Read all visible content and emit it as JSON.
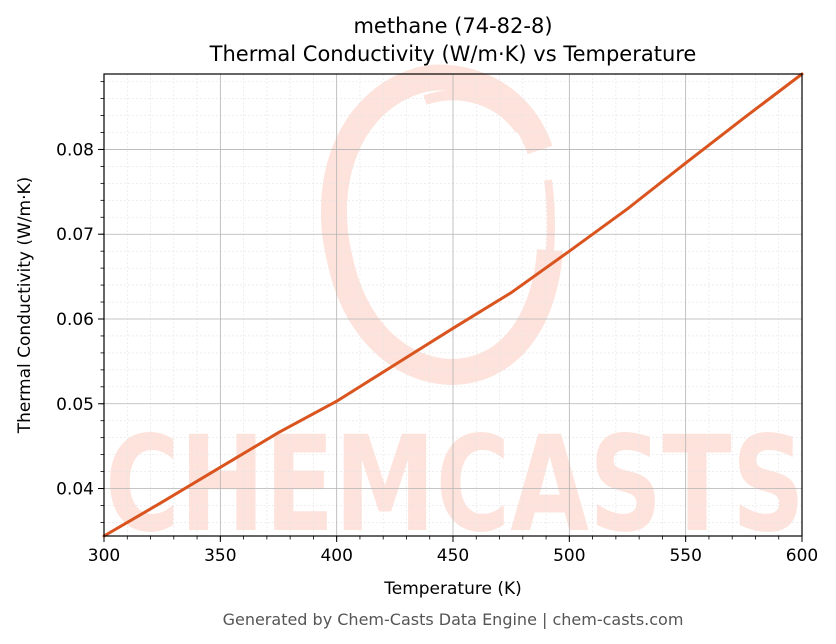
{
  "chart_data": {
    "type": "line",
    "title": "methane (74-82-8)",
    "subtitle": "Thermal Conductivity (W/m·K) vs Temperature",
    "xlabel": "Temperature (K)",
    "ylabel": "Thermal Conductivity (W/m·K)",
    "xlim": [
      300,
      600
    ],
    "ylim": [
      0.0344,
      0.0889
    ],
    "x_ticks": [
      300,
      350,
      400,
      450,
      500,
      550,
      600
    ],
    "x_tick_labels": [
      "300",
      "350",
      "400",
      "450",
      "500",
      "550",
      "600"
    ],
    "y_ticks": [
      0.04,
      0.05,
      0.06,
      0.07,
      0.08
    ],
    "y_tick_labels": [
      "0.04",
      "0.05",
      "0.06",
      "0.07",
      "0.08"
    ],
    "grid": true,
    "series": [
      {
        "color": "#d9541e",
        "x": [
          300,
          325,
          350,
          375,
          400,
          425,
          450,
          475,
          500,
          525,
          550,
          575,
          600
        ],
        "y": [
          0.0344,
          0.0384,
          0.0425,
          0.0466,
          0.0503,
          0.0546,
          0.0589,
          0.0631,
          0.068,
          0.073,
          0.0784,
          0.0837,
          0.0889
        ]
      }
    ]
  },
  "watermark": {
    "text": "CHEMCASTS",
    "color": "#fde3dc"
  },
  "footer": "Generated by Chem-Casts Data Engine | chem-casts.com"
}
